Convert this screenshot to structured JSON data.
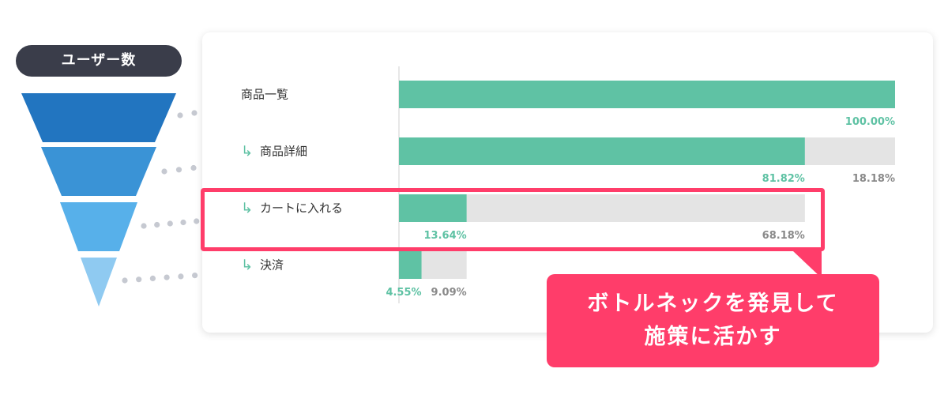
{
  "badge": {
    "label": "ユーザー数"
  },
  "callout": {
    "line1": "ボトルネックを発見して",
    "line2": "施策に活かす"
  },
  "colors": {
    "funnel": [
      "#2275c0",
      "#3a93d6",
      "#57b0ea",
      "#8fcaf1"
    ],
    "bar_reached": "#5fc2a4",
    "bar_dropped": "#e4e4e4",
    "label_reached": "#5fc2a4",
    "label_dropped": "#8a8a8a",
    "highlight": "#ff3d6a",
    "dots": "#c6c9d1"
  },
  "chart_data": {
    "type": "bar",
    "orientation": "horizontal",
    "stacked": true,
    "categories": [
      "商品一覧",
      "商品詳細",
      "カートに入れる",
      "決済"
    ],
    "step_arrow": "↳",
    "series": [
      {
        "values": [
          100.0,
          81.82,
          13.64,
          4.55
        ]
      },
      {
        "values": [
          0,
          18.18,
          68.18,
          9.09
        ]
      }
    ],
    "reached_labels": [
      "100.00%",
      "81.82%",
      "13.64%",
      "4.55%"
    ],
    "dropped_labels": [
      "",
      "18.18%",
      "68.18%",
      "9.09%"
    ],
    "xlim": [
      0,
      100
    ],
    "highlighted_category": "カートに入れる"
  }
}
